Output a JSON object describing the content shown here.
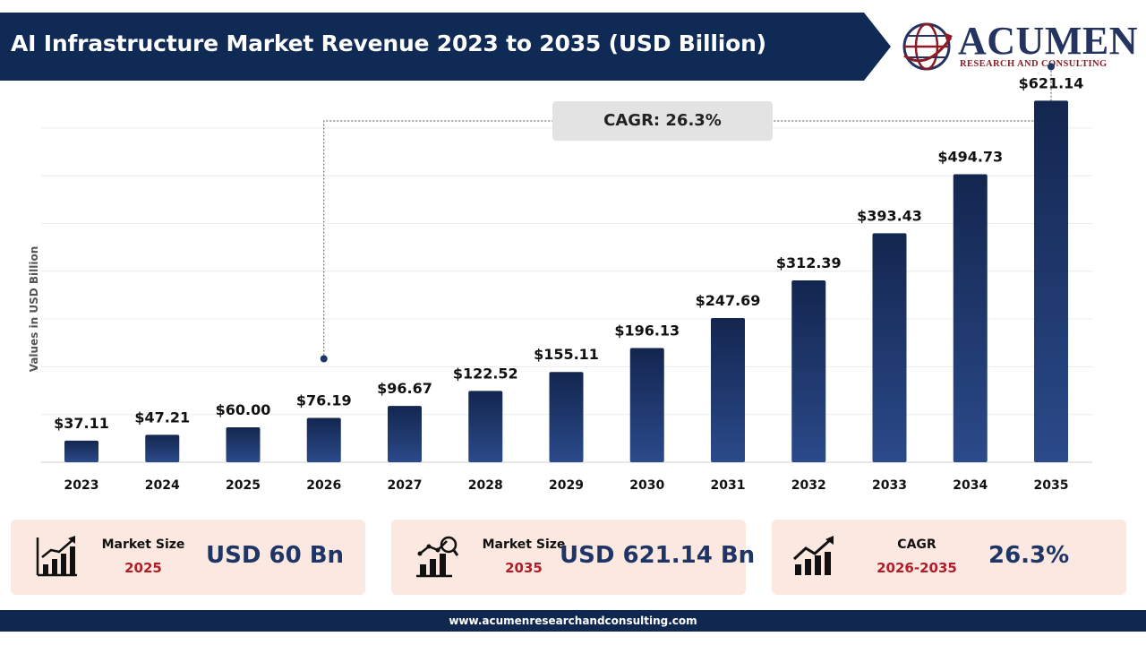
{
  "header": {
    "title": "AI Infrastructure Market Revenue 2023 to 2035 (USD Billion)"
  },
  "logo": {
    "name": "ACUMEN",
    "tagline": "RESEARCH AND CONSULTING"
  },
  "colors": {
    "header_navy": "#0f2a55",
    "bar_top": "#13264f",
    "bar_bottom": "#2b4a8a",
    "card_bg": "#fbe8e0",
    "accent_red": "#b01e2a"
  },
  "chart_data": {
    "type": "bar",
    "title": "AI Infrastructure Market Revenue 2023 to 2035 (USD Billion)",
    "xlabel": "",
    "ylabel": "Values in USD Billion",
    "categories": [
      "2023",
      "2024",
      "2025",
      "2026",
      "2027",
      "2028",
      "2029",
      "2030",
      "2031",
      "2032",
      "2033",
      "2034",
      "2035"
    ],
    "values": [
      37.11,
      47.21,
      60.0,
      76.19,
      96.67,
      122.52,
      155.11,
      196.13,
      247.69,
      312.39,
      393.43,
      494.73,
      621.14
    ],
    "data_labels": [
      "$37.11",
      "$47.21",
      "$60.00",
      "$76.19",
      "$96.67",
      "$122.52",
      "$155.11",
      "$196.13",
      "$247.69",
      "$312.39",
      "$393.43",
      "$494.73",
      "$621.14"
    ],
    "ylim": [
      0,
      700
    ],
    "grid": true,
    "annotation": {
      "text": "CAGR: 26.3%",
      "from_category": "2026",
      "to_category": "2035"
    }
  },
  "stats": [
    {
      "label": "Market Size",
      "sub": "2025",
      "value": "USD 60 Bn",
      "icon": "bar-chart-growth-icon"
    },
    {
      "label": "Market Size",
      "sub": "2035",
      "value": "USD 621.14 Bn",
      "icon": "chart-magnifier-icon"
    },
    {
      "label": "CAGR",
      "sub": "2026-2035",
      "value": "26.3%",
      "icon": "trend-up-icon"
    }
  ],
  "footer": {
    "url": "www.acumenresearchandconsulting.com"
  }
}
